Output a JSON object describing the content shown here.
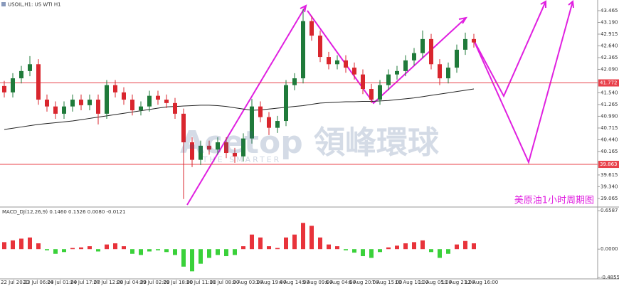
{
  "chart_data": {
    "type": "candlestick",
    "title": "USOIL,H1: US WTI H1",
    "annotation": "美原油1小时周期图",
    "watermark": "Acetop 領峰環球",
    "watermark_sub": "THE SMARTER",
    "ylim": [
      38.88,
      43.715
    ],
    "yticks": [
      43.465,
      {
        "value": 43.19,
        "label": "43.190"
      },
      42.915,
      {
        "value": 42.64,
        "label": "42.640"
      },
      42.365,
      {
        "value": 42.09,
        "label": "42.090"
      },
      {
        "value": 41.54,
        "label": "41.540"
      },
      41.265,
      {
        "value": 40.99,
        "label": "40.990"
      },
      40.715,
      {
        "value": 40.44,
        "label": "40.440"
      },
      40.165,
      39.615,
      {
        "value": 39.34,
        "label": "39.340"
      },
      39.065
    ],
    "levels": [
      41.772,
      39.863
    ],
    "level_color": "#e8404a",
    "bull_color": "#1f7a3a",
    "bear_color": "#d9262e",
    "ma_color": "#222222",
    "x_labels": [
      "22 Jul 2020",
      "23 Jul 06:00",
      "24 Jul 01:00",
      "24 Jul 17:00",
      "27 Jul 12:00",
      "28 Jul 04:00",
      "29 Jul 02:00",
      "29 Jul 18:00",
      "30 Jul 11:00",
      "31 Jul 08:00",
      "3 Aug 03:00",
      "3 Aug 19:00",
      "4 Aug 14:00",
      "5 Aug 09:00",
      "6 Aug 04:00",
      "6 Aug 20:00",
      "7 Aug 15:00",
      "10 Aug 10:00",
      "11 Aug 05:00",
      "11 Aug 21:00",
      "12 Aug 16:00"
    ],
    "open": [
      41.7,
      41.55,
      41.88,
      42.05,
      42.21,
      41.38,
      41.22,
      41.05,
      41.22,
      41.38,
      41.25,
      41.38,
      41.05,
      41.72,
      41.55,
      41.38,
      41.13,
      41.22,
      41.47,
      41.38,
      41.3,
      41.05,
      40.38,
      39.97,
      40.3,
      40.21,
      40.38,
      40.13,
      40.05,
      40.47,
      41.22,
      40.97,
      40.72,
      40.88,
      41.72,
      41.88,
      43.22,
      42.88,
      42.38,
      42.21,
      42.3,
      42.13,
      41.97,
      41.63,
      41.38,
      41.72,
      41.97,
      42.05,
      42.3,
      42.47,
      42.8,
      42.21,
      41.88,
      42.13,
      42.55,
      42.8
    ],
    "high": [
      41.82,
      42.0,
      42.17,
      42.4,
      42.33,
      41.5,
      41.34,
      41.34,
      41.5,
      41.5,
      41.5,
      41.5,
      41.84,
      41.84,
      41.67,
      41.5,
      41.34,
      41.59,
      41.59,
      41.5,
      41.42,
      41.17,
      40.5,
      40.42,
      40.42,
      40.5,
      40.5,
      40.25,
      40.59,
      41.4,
      41.34,
      41.09,
      41.0,
      41.84,
      42.0,
      43.5,
      43.34,
      43.0,
      42.5,
      42.42,
      42.42,
      42.25,
      42.09,
      41.75,
      41.84,
      42.09,
      42.17,
      42.42,
      42.59,
      43.0,
      42.92,
      42.33,
      42.25,
      42.67,
      42.95,
      42.92
    ],
    "low": [
      41.43,
      41.43,
      41.76,
      41.93,
      41.26,
      41.1,
      40.93,
      40.93,
      41.1,
      41.13,
      41.13,
      40.8,
      40.93,
      41.43,
      41.26,
      41.01,
      41.01,
      41.1,
      41.26,
      41.18,
      40.93,
      39.05,
      39.8,
      39.85,
      40.09,
      40.09,
      40.01,
      39.9,
      39.93,
      40.35,
      40.85,
      40.55,
      40.6,
      40.76,
      41.6,
      41.76,
      42.76,
      42.26,
      42.09,
      42.09,
      42.01,
      41.85,
      41.51,
      41.3,
      41.26,
      41.6,
      41.85,
      41.93,
      42.18,
      42.35,
      42.09,
      41.72,
      41.76,
      42.01,
      42.43,
      42.6
    ],
    "close": [
      41.55,
      41.88,
      42.05,
      42.21,
      41.38,
      41.22,
      41.05,
      41.22,
      41.38,
      41.25,
      41.38,
      41.05,
      41.72,
      41.55,
      41.38,
      41.13,
      41.22,
      41.47,
      41.38,
      41.3,
      41.05,
      40.38,
      39.97,
      40.3,
      40.21,
      40.38,
      40.13,
      40.05,
      40.47,
      41.22,
      40.97,
      40.72,
      40.88,
      41.72,
      41.88,
      43.22,
      42.88,
      42.38,
      42.21,
      42.3,
      42.13,
      41.97,
      41.63,
      41.38,
      41.72,
      41.97,
      42.05,
      42.3,
      42.47,
      42.8,
      42.21,
      41.88,
      42.13,
      42.55,
      42.8,
      42.72
    ],
    "ma": [
      40.68,
      40.71,
      40.74,
      40.77,
      40.8,
      40.82,
      40.84,
      40.86,
      40.88,
      40.91,
      40.94,
      40.97,
      41.0,
      41.03,
      41.06,
      41.09,
      41.12,
      41.15,
      41.18,
      41.21,
      41.22,
      41.23,
      41.24,
      41.25,
      41.25,
      41.24,
      41.22,
      41.19,
      41.16,
      41.13,
      41.14,
      41.16,
      41.18,
      41.2,
      41.22,
      41.24,
      41.27,
      41.3,
      41.31,
      41.32,
      41.33,
      41.33,
      41.34,
      41.34,
      41.35,
      41.36,
      41.38,
      41.4,
      41.42,
      41.45,
      41.48,
      41.51,
      41.54,
      41.57,
      41.6,
      41.63
    ],
    "macd": {
      "title": "MACD_DJ(12,26,9) 0.1460 0.1526 0.0080 -0.0121",
      "ylim": [
        -0.51,
        0.71
      ],
      "yticks": [
        0.6587,
        {
          "value": 0,
          "label": "0.0000"
        },
        -0.4855
      ],
      "up_color": "#e8333b",
      "down_color": "#3ad13a",
      "values": [
        0.12,
        0.15,
        0.18,
        0.2,
        0.1,
        -0.02,
        -0.08,
        -0.05,
        0.02,
        0.03,
        0.05,
        -0.04,
        0.08,
        0.1,
        0.05,
        -0.08,
        -0.1,
        -0.04,
        -0.02,
        -0.05,
        -0.1,
        -0.3,
        -0.38,
        -0.25,
        -0.15,
        -0.1,
        -0.12,
        -0.1,
        0.05,
        0.25,
        0.2,
        0.05,
        0.02,
        0.2,
        0.25,
        0.45,
        0.4,
        0.2,
        0.08,
        0.05,
        -0.02,
        -0.06,
        -0.12,
        -0.15,
        -0.05,
        0.03,
        0.06,
        0.1,
        0.12,
        0.15,
        -0.05,
        -0.15,
        -0.08,
        0.08,
        0.14,
        0.1
      ]
    }
  }
}
